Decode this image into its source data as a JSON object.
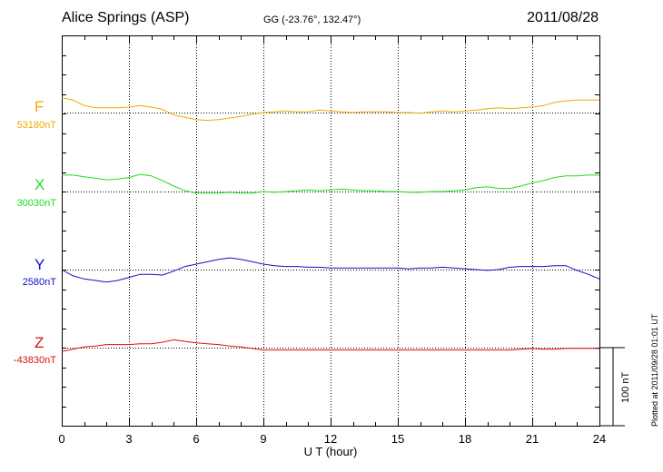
{
  "header": {
    "station": "Alice Springs (ASP)",
    "coords": "GG (-23.76°, 132.47°)",
    "date": "2011/08/28"
  },
  "plotted_note": "Plotted at 2011/09/28 01:01  UT",
  "scale_label": "100 nT",
  "chart_data": {
    "type": "line",
    "xlabel": "U T (hour)",
    "xlim": [
      0,
      24
    ],
    "xticks": [
      "0",
      "3",
      "6",
      "9",
      "12",
      "15",
      "18",
      "21",
      "24"
    ],
    "scale_bar_nT": 100,
    "grid": true,
    "series": [
      {
        "name": "F",
        "baseline_label": "53180nT",
        "baseline_nT": 53180,
        "color": "#f5a800",
        "points": [
          [
            0,
            53199
          ],
          [
            0.5,
            53196
          ],
          [
            1,
            53189
          ],
          [
            1.5,
            53186
          ],
          [
            2,
            53186
          ],
          [
            2.5,
            53186
          ],
          [
            3,
            53187
          ],
          [
            3.5,
            53189
          ],
          [
            4,
            53187
          ],
          [
            4.5,
            53184
          ],
          [
            5,
            53177
          ],
          [
            5.5,
            53174
          ],
          [
            6,
            53171
          ],
          [
            6.5,
            53170
          ],
          [
            7,
            53171
          ],
          [
            7.5,
            53173
          ],
          [
            8,
            53175
          ],
          [
            8.5,
            53178
          ],
          [
            9,
            53180
          ],
          [
            9.5,
            53181
          ],
          [
            10,
            53182
          ],
          [
            10.5,
            53181
          ],
          [
            11,
            53181
          ],
          [
            11.5,
            53183
          ],
          [
            12,
            53182
          ],
          [
            12.5,
            53181
          ],
          [
            13,
            53180
          ],
          [
            13.5,
            53181
          ],
          [
            14,
            53181
          ],
          [
            14.5,
            53181
          ],
          [
            15,
            53180
          ],
          [
            15.5,
            53180
          ],
          [
            16,
            53179
          ],
          [
            16.5,
            53181
          ],
          [
            17,
            53182
          ],
          [
            17.5,
            53181
          ],
          [
            18,
            53182
          ],
          [
            18.5,
            53183
          ],
          [
            19,
            53185
          ],
          [
            19.5,
            53186
          ],
          [
            20,
            53185
          ],
          [
            20.5,
            53186
          ],
          [
            21,
            53187
          ],
          [
            21.5,
            53189
          ],
          [
            22,
            53193
          ],
          [
            22.5,
            53195
          ],
          [
            23,
            53196
          ],
          [
            23.5,
            53196
          ],
          [
            24,
            53196
          ]
        ]
      },
      {
        "name": "X",
        "baseline_label": "30030nT",
        "baseline_nT": 30030,
        "color": "#22dd22",
        "points": [
          [
            0,
            30051
          ],
          [
            0.5,
            30051
          ],
          [
            1,
            30049
          ],
          [
            1.5,
            30047
          ],
          [
            2,
            30045
          ],
          [
            2.5,
            30046
          ],
          [
            3,
            30048
          ],
          [
            3.5,
            30052
          ],
          [
            4,
            30050
          ],
          [
            4.5,
            30044
          ],
          [
            5,
            30037
          ],
          [
            5.5,
            30031
          ],
          [
            6,
            30028
          ],
          [
            6.5,
            30028
          ],
          [
            7,
            30028
          ],
          [
            7.5,
            30029
          ],
          [
            8,
            30028
          ],
          [
            8.5,
            30028
          ],
          [
            9,
            30030
          ],
          [
            9.5,
            30029
          ],
          [
            10,
            30030
          ],
          [
            10.5,
            30031
          ],
          [
            11,
            30032
          ],
          [
            11.5,
            30031
          ],
          [
            12,
            30032
          ],
          [
            12.5,
            30033
          ],
          [
            13,
            30032
          ],
          [
            13.5,
            30031
          ],
          [
            14,
            30031
          ],
          [
            14.5,
            30030
          ],
          [
            15,
            30030
          ],
          [
            15.5,
            30029
          ],
          [
            16,
            30029
          ],
          [
            16.5,
            30030
          ],
          [
            17,
            30030
          ],
          [
            17.5,
            30031
          ],
          [
            18,
            30032
          ],
          [
            18.5,
            30035
          ],
          [
            19,
            30036
          ],
          [
            19.5,
            30034
          ],
          [
            20,
            30034
          ],
          [
            20.5,
            30037
          ],
          [
            21,
            30041
          ],
          [
            21.5,
            30044
          ],
          [
            22,
            30048
          ],
          [
            22.5,
            30050
          ],
          [
            23,
            30050
          ],
          [
            23.5,
            30051
          ],
          [
            24,
            30051
          ]
        ]
      },
      {
        "name": "Y",
        "baseline_label": "2580nT",
        "baseline_nT": 2580,
        "color": "#1010c8",
        "points": [
          [
            0,
            2580
          ],
          [
            0.5,
            2572
          ],
          [
            1,
            2568
          ],
          [
            1.5,
            2566
          ],
          [
            2,
            2564
          ],
          [
            2.5,
            2566
          ],
          [
            3,
            2570
          ],
          [
            3.5,
            2574
          ],
          [
            4,
            2574
          ],
          [
            4.5,
            2573
          ],
          [
            5,
            2578
          ],
          [
            5.5,
            2584
          ],
          [
            6,
            2587
          ],
          [
            6.5,
            2590
          ],
          [
            7,
            2593
          ],
          [
            7.5,
            2595
          ],
          [
            8,
            2593
          ],
          [
            8.5,
            2590
          ],
          [
            9,
            2587
          ],
          [
            9.5,
            2585
          ],
          [
            10,
            2584
          ],
          [
            10.5,
            2584
          ],
          [
            11,
            2583
          ],
          [
            11.5,
            2583
          ],
          [
            12,
            2582
          ],
          [
            12.5,
            2582
          ],
          [
            13,
            2582
          ],
          [
            13.5,
            2582
          ],
          [
            14,
            2582
          ],
          [
            14.5,
            2582
          ],
          [
            15,
            2582
          ],
          [
            15.5,
            2581
          ],
          [
            16,
            2582
          ],
          [
            16.5,
            2582
          ],
          [
            17,
            2583
          ],
          [
            17.5,
            2582
          ],
          [
            18,
            2581
          ],
          [
            18.5,
            2580
          ],
          [
            19,
            2579
          ],
          [
            19.5,
            2580
          ],
          [
            20,
            2583
          ],
          [
            20.5,
            2584
          ],
          [
            21,
            2584
          ],
          [
            21.5,
            2584
          ],
          [
            22,
            2585
          ],
          [
            22.5,
            2585
          ],
          [
            23,
            2579
          ],
          [
            23.5,
            2574
          ],
          [
            24,
            2568
          ]
        ]
      },
      {
        "name": "Z",
        "baseline_label": "-43830nT",
        "baseline_nT": -43830,
        "color": "#dd1010",
        "points": [
          [
            0,
            -43835
          ],
          [
            0.5,
            -43832
          ],
          [
            1,
            -43829
          ],
          [
            1.5,
            -43828
          ],
          [
            2,
            -43826
          ],
          [
            2.5,
            -43826
          ],
          [
            3,
            -43826
          ],
          [
            3.5,
            -43825
          ],
          [
            4,
            -43825
          ],
          [
            4.5,
            -43823
          ],
          [
            5,
            -43820
          ],
          [
            5.5,
            -43822
          ],
          [
            6,
            -43824
          ],
          [
            6.5,
            -43825
          ],
          [
            7,
            -43826
          ],
          [
            7.5,
            -43828
          ],
          [
            8,
            -43829
          ],
          [
            8.5,
            -43831
          ],
          [
            9,
            -43833
          ],
          [
            9.5,
            -43833
          ],
          [
            10,
            -43833
          ],
          [
            10.5,
            -43833
          ],
          [
            11,
            -43833
          ],
          [
            11.5,
            -43833
          ],
          [
            12,
            -43833
          ],
          [
            12.5,
            -43833
          ],
          [
            13,
            -43833
          ],
          [
            13.5,
            -43833
          ],
          [
            14,
            -43833
          ],
          [
            14.5,
            -43833
          ],
          [
            15,
            -43833
          ],
          [
            15.5,
            -43833
          ],
          [
            16,
            -43833
          ],
          [
            16.5,
            -43833
          ],
          [
            17,
            -43833
          ],
          [
            17.5,
            -43833
          ],
          [
            18,
            -43833
          ],
          [
            18.5,
            -43833
          ],
          [
            19,
            -43833
          ],
          [
            19.5,
            -43833
          ],
          [
            20,
            -43833
          ],
          [
            20.5,
            -43832
          ],
          [
            21,
            -43831
          ],
          [
            21.5,
            -43832
          ],
          [
            22,
            -43832
          ],
          [
            22.5,
            -43831
          ],
          [
            23,
            -43831
          ],
          [
            23.5,
            -43831
          ],
          [
            24,
            -43831
          ]
        ]
      }
    ]
  }
}
